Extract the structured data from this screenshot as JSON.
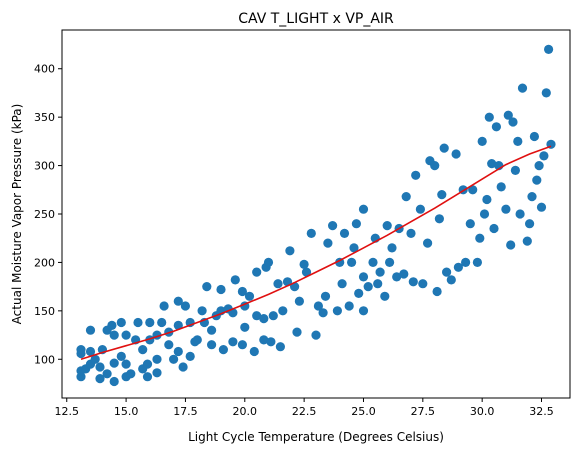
{
  "chart_data": {
    "type": "scatter",
    "title": "CAV T_LIGHT x VP_AIR",
    "xlabel": "Light Cycle Temperature (Degrees Celsius)",
    "ylabel": "Actual Moisture Vapor Pressure (kPa)",
    "xlim": [
      12.3,
      33.7
    ],
    "ylim": [
      60,
      440
    ],
    "xticks": [
      12.5,
      15.0,
      17.5,
      20.0,
      22.5,
      25.0,
      27.5,
      30.0,
      32.5
    ],
    "xtick_labels": [
      "12.5",
      "15.0",
      "17.5",
      "20.0",
      "22.5",
      "25.0",
      "27.5",
      "30.0",
      "32.5"
    ],
    "yticks": [
      100,
      150,
      200,
      250,
      300,
      350,
      400
    ],
    "ytick_labels": [
      "100",
      "150",
      "200",
      "250",
      "300",
      "350",
      "400"
    ],
    "grid": false,
    "series": [
      {
        "type": "scatter",
        "color": "#1f77b4",
        "points": [
          [
            13.1,
            82
          ],
          [
            13.1,
            88
          ],
          [
            13.1,
            106
          ],
          [
            13.1,
            110
          ],
          [
            13.3,
            90
          ],
          [
            13.5,
            95
          ],
          [
            13.5,
            108
          ],
          [
            13.5,
            130
          ],
          [
            13.7,
            100
          ],
          [
            13.9,
            80
          ],
          [
            13.9,
            92
          ],
          [
            14.0,
            110
          ],
          [
            14.2,
            85
          ],
          [
            14.2,
            130
          ],
          [
            14.4,
            135
          ],
          [
            14.5,
            77
          ],
          [
            14.5,
            96
          ],
          [
            14.5,
            125
          ],
          [
            14.8,
            103
          ],
          [
            14.8,
            138
          ],
          [
            15.0,
            82
          ],
          [
            15.0,
            95
          ],
          [
            15.0,
            125
          ],
          [
            15.2,
            85
          ],
          [
            15.4,
            120
          ],
          [
            15.5,
            138
          ],
          [
            15.7,
            90
          ],
          [
            15.7,
            110
          ],
          [
            15.9,
            82
          ],
          [
            15.9,
            95
          ],
          [
            16.0,
            120
          ],
          [
            16.0,
            138
          ],
          [
            16.3,
            86
          ],
          [
            16.3,
            100
          ],
          [
            16.3,
            125
          ],
          [
            16.5,
            138
          ],
          [
            16.6,
            155
          ],
          [
            16.8,
            115
          ],
          [
            16.8,
            128
          ],
          [
            17.0,
            100
          ],
          [
            17.2,
            108
          ],
          [
            17.2,
            135
          ],
          [
            17.2,
            160
          ],
          [
            17.4,
            92
          ],
          [
            17.5,
            155
          ],
          [
            17.7,
            103
          ],
          [
            17.7,
            138
          ],
          [
            17.9,
            118
          ],
          [
            18.0,
            120
          ],
          [
            18.2,
            150
          ],
          [
            18.3,
            138
          ],
          [
            18.4,
            175
          ],
          [
            18.6,
            115
          ],
          [
            18.6,
            130
          ],
          [
            18.8,
            145
          ],
          [
            19.0,
            150
          ],
          [
            19.0,
            172
          ],
          [
            19.1,
            110
          ],
          [
            19.3,
            152
          ],
          [
            19.5,
            118
          ],
          [
            19.5,
            148
          ],
          [
            19.6,
            182
          ],
          [
            19.9,
            115
          ],
          [
            19.9,
            170
          ],
          [
            20.0,
            133
          ],
          [
            20.0,
            155
          ],
          [
            20.2,
            165
          ],
          [
            20.4,
            108
          ],
          [
            20.5,
            145
          ],
          [
            20.5,
            190
          ],
          [
            20.8,
            120
          ],
          [
            20.8,
            142
          ],
          [
            20.9,
            195
          ],
          [
            21.0,
            200
          ],
          [
            21.1,
            118
          ],
          [
            21.2,
            145
          ],
          [
            21.4,
            178
          ],
          [
            21.5,
            113
          ],
          [
            21.6,
            150
          ],
          [
            21.8,
            180
          ],
          [
            21.9,
            212
          ],
          [
            22.1,
            175
          ],
          [
            22.2,
            128
          ],
          [
            22.3,
            160
          ],
          [
            22.5,
            198
          ],
          [
            22.6,
            190
          ],
          [
            22.8,
            230
          ],
          [
            23.0,
            125
          ],
          [
            23.1,
            155
          ],
          [
            23.3,
            148
          ],
          [
            23.4,
            165
          ],
          [
            23.5,
            220
          ],
          [
            23.7,
            238
          ],
          [
            23.9,
            150
          ],
          [
            24.0,
            200
          ],
          [
            24.1,
            178
          ],
          [
            24.2,
            230
          ],
          [
            24.4,
            155
          ],
          [
            24.5,
            200
          ],
          [
            24.6,
            215
          ],
          [
            24.7,
            240
          ],
          [
            24.8,
            168
          ],
          [
            25.0,
            150
          ],
          [
            25.0,
            185
          ],
          [
            25.0,
            255
          ],
          [
            25.2,
            175
          ],
          [
            25.4,
            200
          ],
          [
            25.5,
            225
          ],
          [
            25.6,
            178
          ],
          [
            25.7,
            190
          ],
          [
            25.9,
            165
          ],
          [
            26.0,
            238
          ],
          [
            26.1,
            200
          ],
          [
            26.2,
            215
          ],
          [
            26.4,
            185
          ],
          [
            26.5,
            235
          ],
          [
            26.7,
            188
          ],
          [
            26.8,
            268
          ],
          [
            27.0,
            230
          ],
          [
            27.1,
            180
          ],
          [
            27.2,
            290
          ],
          [
            27.4,
            255
          ],
          [
            27.5,
            178
          ],
          [
            27.7,
            220
          ],
          [
            27.8,
            305
          ],
          [
            28.0,
            300
          ],
          [
            28.1,
            170
          ],
          [
            28.2,
            245
          ],
          [
            28.3,
            270
          ],
          [
            28.4,
            318
          ],
          [
            28.5,
            190
          ],
          [
            28.7,
            182
          ],
          [
            28.9,
            312
          ],
          [
            29.0,
            195
          ],
          [
            29.2,
            275
          ],
          [
            29.3,
            200
          ],
          [
            29.5,
            240
          ],
          [
            29.6,
            275
          ],
          [
            29.8,
            200
          ],
          [
            29.9,
            225
          ],
          [
            30.0,
            325
          ],
          [
            30.1,
            250
          ],
          [
            30.2,
            265
          ],
          [
            30.3,
            350
          ],
          [
            30.4,
            302
          ],
          [
            30.5,
            235
          ],
          [
            30.6,
            340
          ],
          [
            30.7,
            300
          ],
          [
            30.8,
            278
          ],
          [
            31.0,
            255
          ],
          [
            31.1,
            352
          ],
          [
            31.2,
            218
          ],
          [
            31.3,
            345
          ],
          [
            31.4,
            295
          ],
          [
            31.5,
            325
          ],
          [
            31.6,
            250
          ],
          [
            31.7,
            380
          ],
          [
            31.9,
            222
          ],
          [
            32.0,
            240
          ],
          [
            32.1,
            268
          ],
          [
            32.2,
            330
          ],
          [
            32.3,
            285
          ],
          [
            32.4,
            300
          ],
          [
            32.5,
            257
          ],
          [
            32.6,
            310
          ],
          [
            32.7,
            375
          ],
          [
            32.8,
            420
          ],
          [
            32.9,
            322
          ]
        ]
      },
      {
        "type": "line",
        "color": "#e01010",
        "points": [
          [
            13.1,
            100
          ],
          [
            14.0,
            107
          ],
          [
            15.0,
            114
          ],
          [
            16.0,
            121
          ],
          [
            17.0,
            129
          ],
          [
            18.0,
            138
          ],
          [
            19.0,
            147
          ],
          [
            20.0,
            157
          ],
          [
            21.0,
            167
          ],
          [
            22.0,
            178
          ],
          [
            23.0,
            190
          ],
          [
            24.0,
            202
          ],
          [
            25.0,
            215
          ],
          [
            26.0,
            228
          ],
          [
            27.0,
            242
          ],
          [
            28.0,
            256
          ],
          [
            29.0,
            271
          ],
          [
            30.0,
            286
          ],
          [
            31.0,
            301
          ],
          [
            32.0,
            312
          ],
          [
            32.9,
            320
          ]
        ]
      }
    ]
  }
}
